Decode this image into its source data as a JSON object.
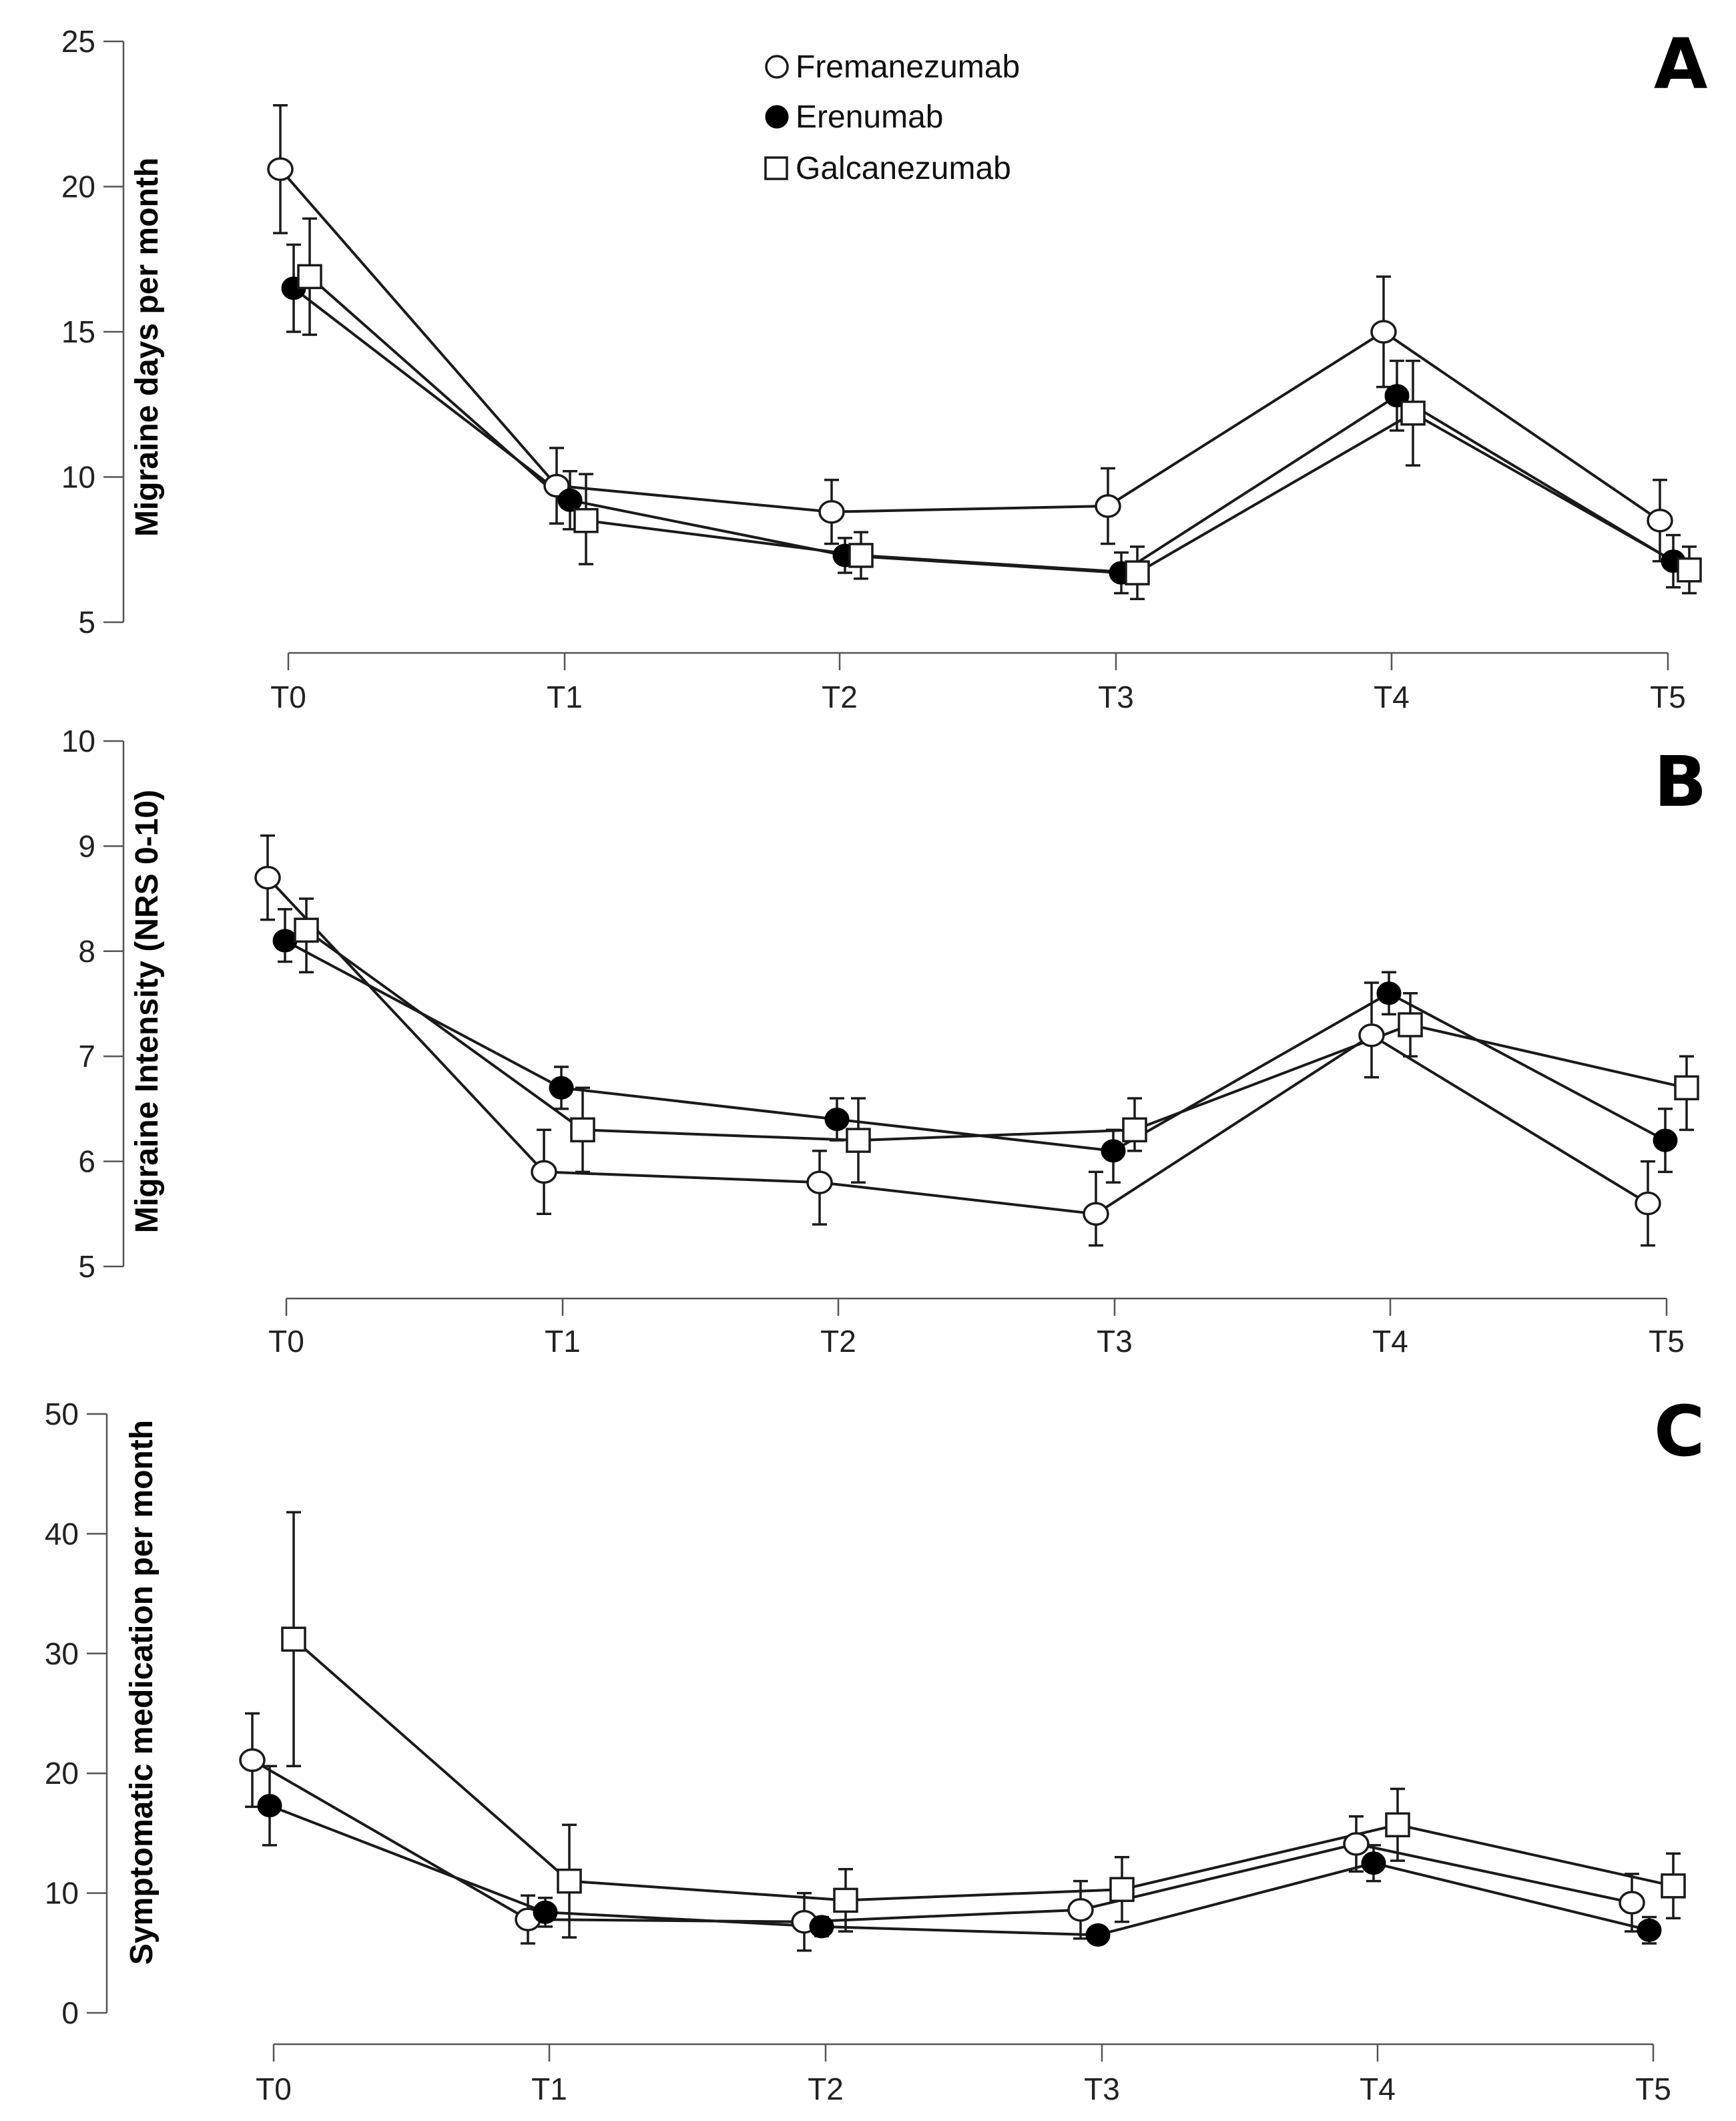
{
  "legend": {
    "items": [
      {
        "name": "Fremanezumab",
        "marker": "open-circle"
      },
      {
        "name": "Erenumab",
        "marker": "filled-circle"
      },
      {
        "name": "Galcanezumab",
        "marker": "open-square"
      }
    ],
    "placement": "top-center"
  },
  "chart_data": [
    {
      "type": "line",
      "panel": "A",
      "title": "",
      "xlabel": "",
      "ylabel": "Migraine days per month",
      "categories": [
        "T0",
        "T1",
        "T2",
        "T3",
        "T4",
        "T5"
      ],
      "ylim": [
        5,
        25
      ],
      "yticks": [
        5,
        10,
        15,
        20,
        25
      ],
      "series": [
        {
          "name": "Fremanezumab",
          "marker": "open-circle",
          "values": [
            20.6,
            9.7,
            8.8,
            9.0,
            15.0,
            8.5
          ],
          "err_up": [
            22.8,
            11.0,
            9.9,
            10.3,
            16.9,
            9.9
          ],
          "err_down": [
            18.4,
            8.4,
            7.7,
            7.7,
            13.1,
            7.1
          ]
        },
        {
          "name": "Erenumab",
          "marker": "filled-circle",
          "values": [
            16.5,
            9.2,
            7.3,
            6.7,
            12.8,
            7.1
          ],
          "err_up": [
            18.0,
            10.2,
            7.9,
            7.4,
            14.0,
            8.0
          ],
          "err_down": [
            15.0,
            8.2,
            6.7,
            6.0,
            11.6,
            6.2
          ]
        },
        {
          "name": "Galcanezumab",
          "marker": "open-square",
          "values": [
            16.9,
            8.5,
            7.3,
            6.7,
            12.2,
            6.8
          ],
          "err_up": [
            18.9,
            10.1,
            8.1,
            7.6,
            14.0,
            7.6
          ],
          "err_down": [
            14.9,
            7.0,
            6.5,
            5.8,
            10.4,
            6.0
          ]
        }
      ]
    },
    {
      "type": "line",
      "panel": "B",
      "title": "",
      "xlabel": "",
      "ylabel": "Migraine Intensity (NRS 0-10)",
      "categories": [
        "T0",
        "T1",
        "T2",
        "T3",
        "T4",
        "T5"
      ],
      "ylim": [
        5,
        10
      ],
      "yticks": [
        5,
        6,
        7,
        8,
        9,
        10
      ],
      "series": [
        {
          "name": "Fremanezumab",
          "marker": "open-circle",
          "values": [
            8.7,
            5.9,
            5.8,
            5.5,
            7.2,
            5.6
          ],
          "err_up": [
            9.1,
            6.3,
            6.1,
            5.9,
            7.7,
            6.0
          ],
          "err_down": [
            8.3,
            5.5,
            5.4,
            5.2,
            6.8,
            5.2
          ]
        },
        {
          "name": "Erenumab",
          "marker": "filled-circle",
          "values": [
            8.1,
            6.7,
            6.4,
            6.1,
            7.6,
            6.2
          ],
          "err_up": [
            8.4,
            6.9,
            6.6,
            6.3,
            7.8,
            6.5
          ],
          "err_down": [
            7.9,
            6.5,
            6.2,
            5.8,
            7.4,
            5.9
          ]
        },
        {
          "name": "Galcanezumab",
          "marker": "open-square",
          "values": [
            8.2,
            6.3,
            6.2,
            6.3,
            7.3,
            6.7
          ],
          "err_up": [
            8.5,
            6.7,
            6.6,
            6.6,
            7.6,
            7.0
          ],
          "err_down": [
            7.8,
            5.9,
            5.8,
            6.1,
            7.0,
            6.3
          ]
        }
      ]
    },
    {
      "type": "line",
      "panel": "C",
      "title": "",
      "xlabel": "",
      "ylabel": "Symptomatic medication per month",
      "categories": [
        "T0",
        "T1",
        "T2",
        "T3",
        "T4",
        "T5"
      ],
      "ylim": [
        0,
        50
      ],
      "yticks": [
        0,
        10,
        20,
        30,
        40,
        50
      ],
      "series": [
        {
          "name": "Fremanezumab",
          "marker": "open-circle",
          "values": [
            21.1,
            7.8,
            7.6,
            8.6,
            14.1,
            9.2
          ],
          "err_up": [
            25.0,
            9.8,
            10.0,
            11.0,
            16.4,
            11.6
          ],
          "err_down": [
            17.2,
            5.8,
            5.2,
            6.2,
            11.8,
            6.8
          ]
        },
        {
          "name": "Erenumab",
          "marker": "filled-circle",
          "values": [
            17.3,
            8.4,
            7.2,
            6.5,
            12.5,
            6.9
          ],
          "err_up": [
            20.6,
            9.6,
            8.0,
            7.2,
            14.0,
            8.0
          ],
          "err_down": [
            14.0,
            7.2,
            6.4,
            5.8,
            11.0,
            5.8
          ]
        },
        {
          "name": "Galcanezumab",
          "marker": "open-square",
          "values": [
            31.2,
            11.0,
            9.4,
            10.3,
            15.7,
            10.6
          ],
          "err_up": [
            41.8,
            15.7,
            12.0,
            13.0,
            18.7,
            13.3
          ],
          "err_down": [
            20.6,
            6.3,
            6.8,
            7.6,
            12.7,
            7.9
          ]
        }
      ]
    }
  ]
}
